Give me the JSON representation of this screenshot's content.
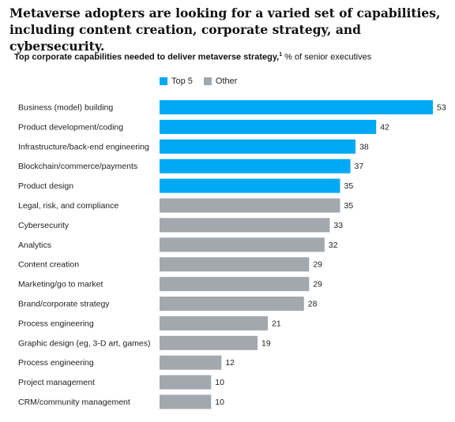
{
  "headline": "Metaverse adopters are looking for a varied set of capabilities, including content creation, corporate strategy, and cybersecurity.",
  "subtitle": {
    "bold": "Top corporate capabilities needed to deliver metaverse strategy,",
    "footnote_marker": "1",
    "unit": " % of senior executives"
  },
  "legend": [
    {
      "label": "Top 5",
      "color": "#00a9f4"
    },
    {
      "label": "Other",
      "color": "#a2a8ae"
    }
  ],
  "chart_data": {
    "type": "bar",
    "orientation": "horizontal",
    "categories": [
      "Business (model) building",
      "Product development/coding",
      "Infrastructure/back-end engineering",
      "Blockchain/commerce/payments",
      "Product design",
      "Legal, risk, and compliance",
      "Cybersecurity",
      "Analytics",
      "Content creation",
      "Marketing/go to market",
      "Brand/corporate strategy",
      "Process engineering",
      "Graphic design (eg, 3-D art, games)",
      "Process engineering",
      "Project management",
      "CRM/community management"
    ],
    "values": [
      53,
      42,
      38,
      37,
      35,
      35,
      33,
      32,
      29,
      29,
      28,
      21,
      19,
      12,
      10,
      10
    ],
    "groups": [
      "Top 5",
      "Top 5",
      "Top 5",
      "Top 5",
      "Top 5",
      "Other",
      "Other",
      "Other",
      "Other",
      "Other",
      "Other",
      "Other",
      "Other",
      "Other",
      "Other",
      "Other"
    ],
    "xlim": [
      0,
      53
    ],
    "grid": false,
    "legend_position": "top"
  }
}
